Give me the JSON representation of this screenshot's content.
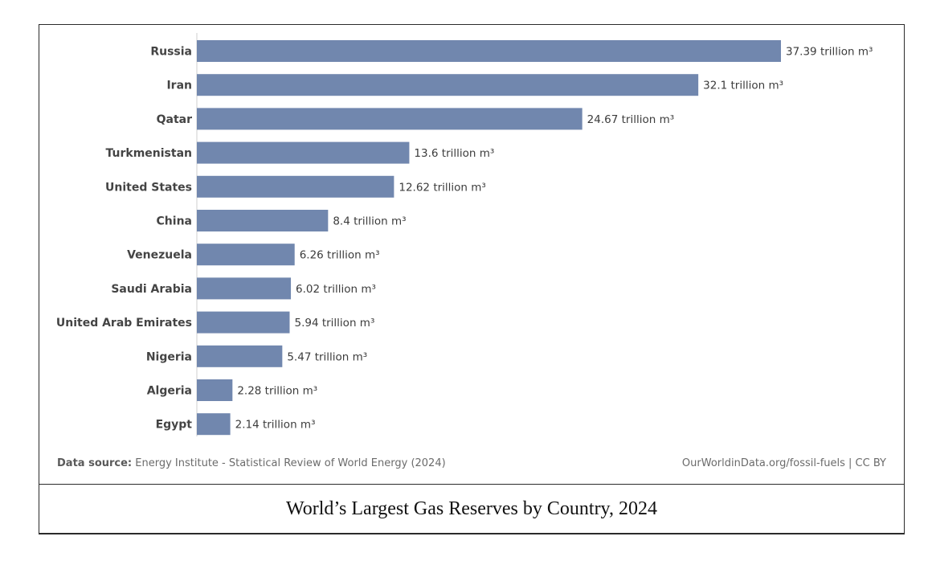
{
  "chart_data": {
    "type": "bar",
    "orientation": "horizontal",
    "categories": [
      "Russia",
      "Iran",
      "Qatar",
      "Turkmenistan",
      "United States",
      "China",
      "Venezuela",
      "Saudi Arabia",
      "United Arab Emirates",
      "Nigeria",
      "Algeria",
      "Egypt"
    ],
    "values": [
      37.39,
      32.1,
      24.67,
      13.6,
      12.62,
      8.4,
      6.26,
      6.02,
      5.94,
      5.47,
      2.28,
      2.14
    ],
    "value_labels": [
      "37.39 trillion m³",
      "32.1 trillion m³",
      "24.67 trillion m³",
      "13.6 trillion m³",
      "12.62 trillion m³",
      "8.4 trillion m³",
      "6.26 trillion m³",
      "6.02 trillion m³",
      "5.94 trillion m³",
      "5.47 trillion m³",
      "2.28 trillion m³",
      "2.14 trillion m³"
    ],
    "unit": "trillion m³",
    "xlim": [
      0,
      37.39
    ],
    "bar_color": "#7187ae",
    "grid": false,
    "legend": "none"
  },
  "footer": {
    "source_label": "Data source:",
    "source_text": "Energy Institute - Statistical Review of World Energy (2024)",
    "credit": "OurWorldinData.org/fossil-fuels | CC BY"
  },
  "caption": "World’s Largest Gas Reserves by Country, 2024"
}
